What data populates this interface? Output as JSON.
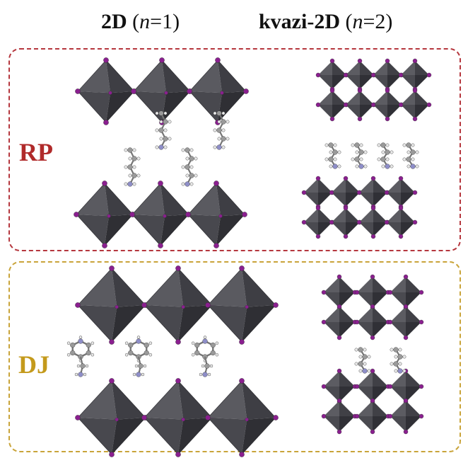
{
  "header": {
    "left": {
      "prefix": "2D",
      "open": " (",
      "var": "n",
      "eq": "=1)"
    },
    "right": {
      "prefix": "kvazi-2D",
      "open": " (",
      "var": "n",
      "eq": "=2)"
    }
  },
  "panels": {
    "rp": {
      "label": "RP",
      "border_color": "#b5373e",
      "label_color": "#b02a2a"
    },
    "dj": {
      "label": "DJ",
      "border_color": "#c9a43a",
      "label_color": "#c49a1c"
    }
  },
  "colors": {
    "octahedron": "#4a4a4f",
    "octahedron_light": "#6b6b70",
    "halide": "#8a1f8f",
    "carbon": "#9a9a9a",
    "nitrogen": "#8e8ec8",
    "hydrogen": "#e8e8e8"
  }
}
